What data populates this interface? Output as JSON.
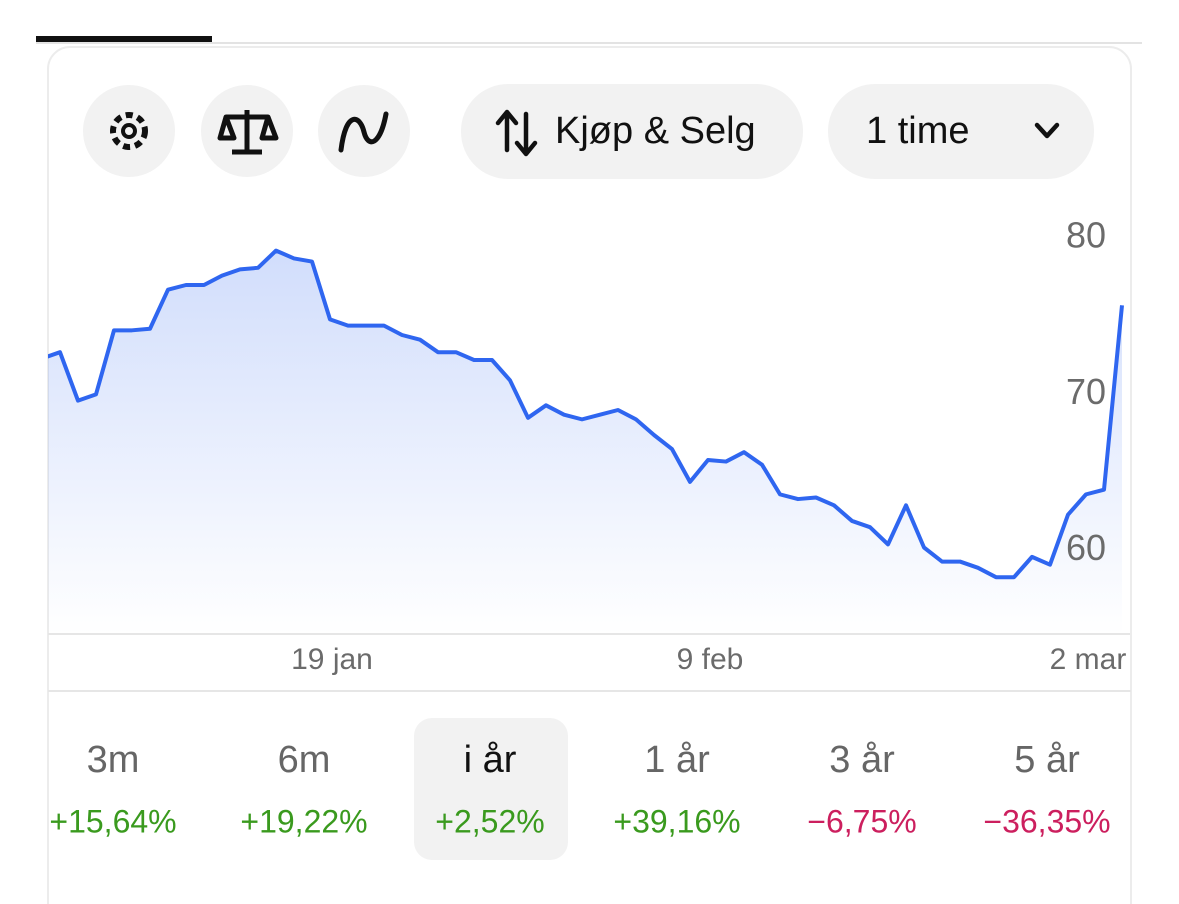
{
  "toolbar": {
    "trade_button": "Kjøp & Selg",
    "interval": "1 time"
  },
  "chart_data": {
    "type": "line",
    "categories": [
      null,
      null,
      null,
      null,
      null,
      null,
      null,
      null,
      null,
      null,
      null,
      null,
      null,
      null,
      null,
      null,
      "19 jan",
      null,
      null,
      null,
      null,
      null,
      null,
      null,
      null,
      null,
      null,
      null,
      null,
      null,
      null,
      null,
      null,
      null,
      null,
      null,
      null,
      "9 feb",
      null,
      null,
      null,
      null,
      null,
      null,
      null,
      null,
      null,
      null,
      null,
      null,
      null,
      null,
      null,
      null,
      null,
      null,
      null,
      null,
      "2 mar",
      null,
      null
    ],
    "values": [
      72.3,
      72.7,
      69.6,
      70.0,
      74.1,
      74.1,
      74.2,
      76.7,
      77.0,
      77.0,
      77.6,
      78.0,
      78.1,
      79.2,
      78.7,
      78.5,
      74.8,
      74.4,
      74.4,
      74.4,
      73.8,
      73.5,
      72.7,
      72.7,
      72.2,
      72.2,
      70.9,
      68.5,
      69.3,
      68.7,
      68.4,
      68.7,
      69.0,
      68.4,
      67.4,
      66.5,
      64.4,
      65.8,
      65.7,
      66.3,
      65.5,
      63.6,
      63.3,
      63.4,
      62.9,
      61.9,
      61.5,
      60.4,
      62.9,
      60.2,
      59.3,
      59.3,
      58.9,
      58.3,
      58.3,
      59.6,
      59.1,
      62.3,
      63.6,
      63.9,
      75.7
    ],
    "color": "#2f66f0",
    "ylim": [
      54.6,
      81.8
    ],
    "yticks": [
      60,
      70,
      80
    ]
  },
  "periods": [
    {
      "label": "3m",
      "change": "+15,64%",
      "trend": "up"
    },
    {
      "label": "6m",
      "change": "+19,22%",
      "trend": "up"
    },
    {
      "label": "i år",
      "change": "+2,52%",
      "trend": "up",
      "selected": true
    },
    {
      "label": "1 år",
      "change": "+39,16%",
      "trend": "up"
    },
    {
      "label": "3 år",
      "change": "−6,75%",
      "trend": "down"
    },
    {
      "label": "5 år",
      "change": "−36,35%",
      "trend": "down"
    }
  ]
}
